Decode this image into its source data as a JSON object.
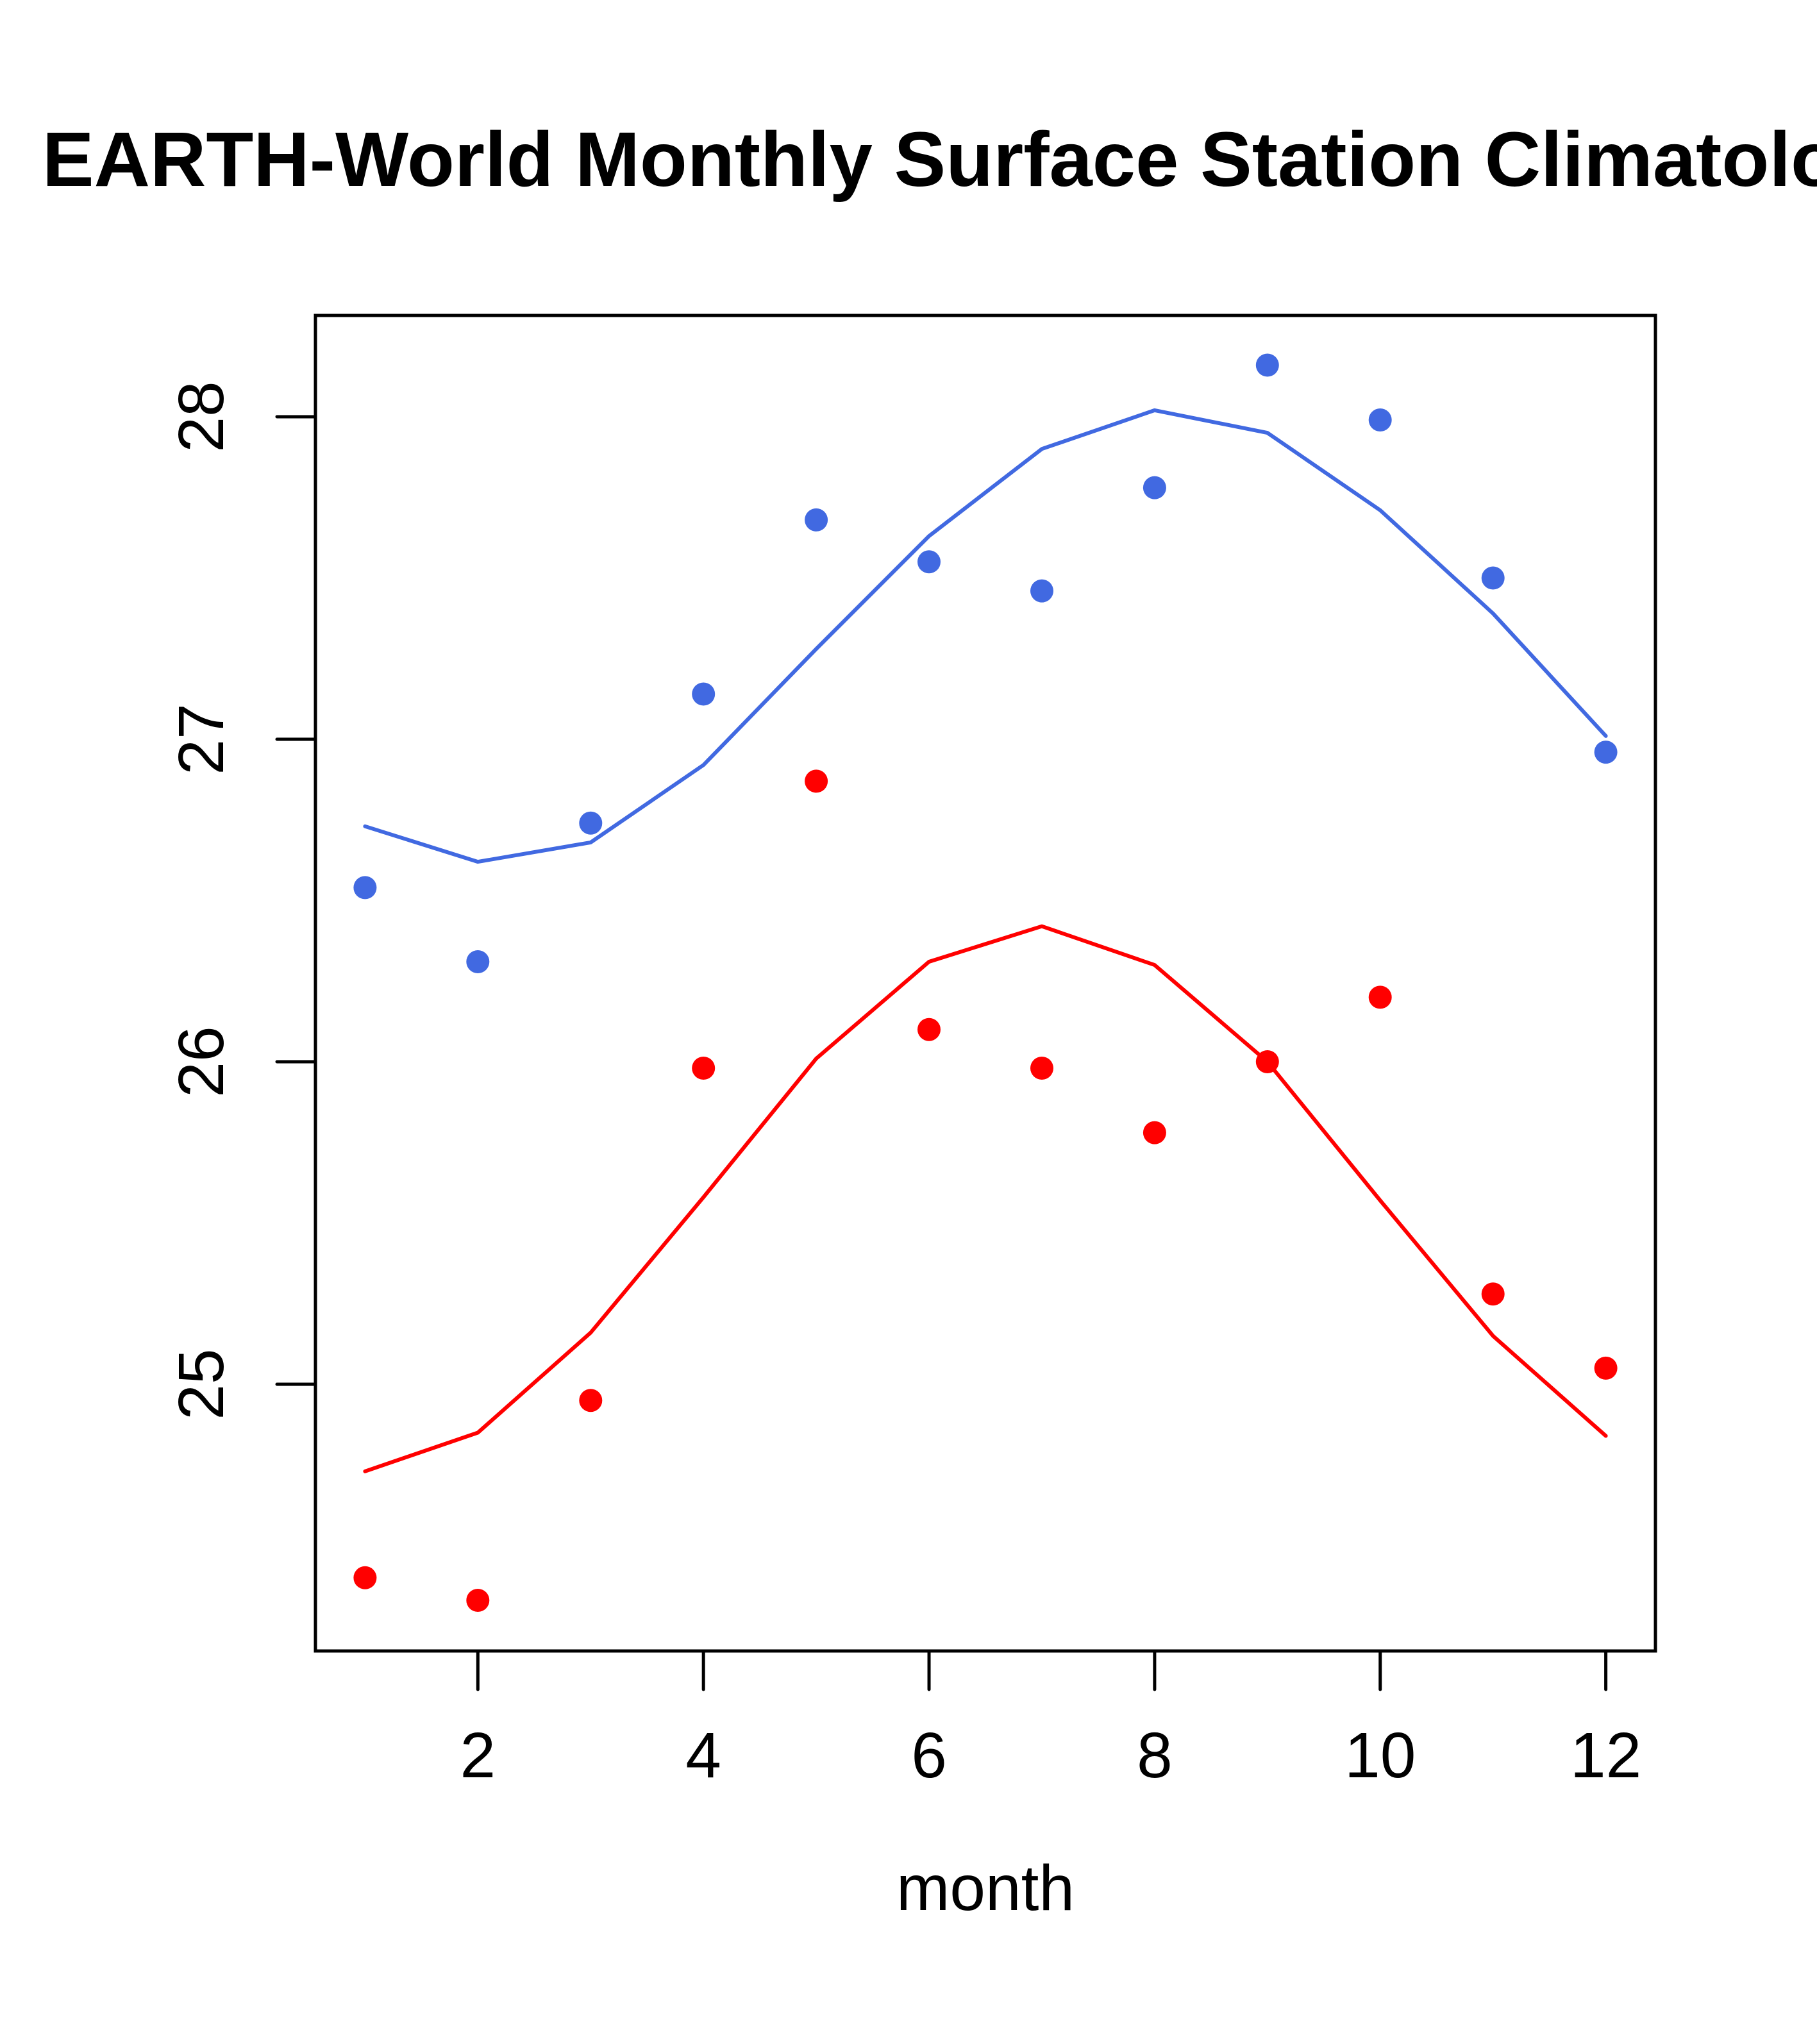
{
  "chart_data": {
    "type": "scatter",
    "title": "EARTH-World Monthly Surface Station Climatology",
    "xlabel": "month",
    "ylabel": "",
    "xlim": [
      0.56,
      12.44
    ],
    "ylim": [
      24.173,
      28.314
    ],
    "x_ticks": [
      2,
      4,
      6,
      8,
      10,
      12
    ],
    "x_tick_labels": [
      "2",
      "4",
      "6",
      "8",
      "10",
      "12"
    ],
    "y_ticks": [
      25,
      26,
      27,
      28
    ],
    "y_tick_labels": [
      "25",
      "26",
      "27",
      "28"
    ],
    "grid": false,
    "legend": null,
    "x": [
      1,
      2,
      3,
      4,
      5,
      6,
      7,
      8,
      9,
      10,
      11,
      12
    ],
    "series": [
      {
        "name": "blue-points",
        "kind": "points",
        "color": "#4169E1",
        "values": [
          26.54,
          26.31,
          26.74,
          27.14,
          27.68,
          27.55,
          27.46,
          27.78,
          28.16,
          27.99,
          27.5,
          26.96
        ]
      },
      {
        "name": "blue-line",
        "kind": "line",
        "color": "#4169E1",
        "values": [
          26.73,
          26.62,
          26.68,
          26.92,
          27.28,
          27.63,
          27.9,
          28.02,
          27.95,
          27.71,
          27.39,
          27.01
        ]
      },
      {
        "name": "red-points",
        "kind": "points",
        "color": "#FF0000",
        "values": [
          24.4,
          24.33,
          24.95,
          25.98,
          26.87,
          26.1,
          25.98,
          25.78,
          26.0,
          26.2,
          25.28,
          25.05
        ]
      },
      {
        "name": "red-line",
        "kind": "line",
        "color": "#FF0000",
        "values": [
          24.73,
          24.85,
          25.16,
          25.58,
          26.01,
          26.31,
          26.42,
          26.3,
          26.0,
          25.57,
          25.15,
          24.84
        ]
      }
    ]
  }
}
